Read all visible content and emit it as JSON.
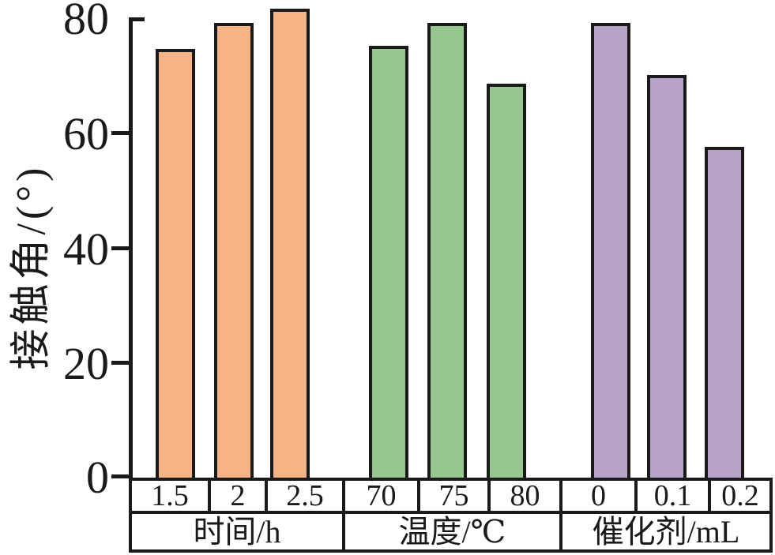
{
  "chart_data": {
    "type": "bar",
    "title": "",
    "ylabel": "接触角/(°)",
    "xlabel": "",
    "ylim": [
      0,
      80
    ],
    "yticks": [
      80,
      60,
      40,
      20,
      0
    ],
    "ytick_labels": [
      "80",
      "60",
      "40",
      "20",
      "0"
    ],
    "grid": false,
    "legend": "none",
    "bar_outline_color": "#1a1a1a",
    "groups": [
      {
        "label": "时间/h",
        "color": "#f6b385",
        "categories": [
          "1.5",
          "2",
          "2.5"
        ],
        "values": [
          74.5,
          79,
          81.5
        ]
      },
      {
        "label": "温度/℃",
        "color": "#96c78e",
        "categories": [
          "70",
          "75",
          "80"
        ],
        "values": [
          75,
          79,
          68.5
        ]
      },
      {
        "label": "催化剂/mL",
        "color": "#b7a3c6",
        "categories": [
          "0",
          "0.1",
          "0.2"
        ],
        "values": [
          79,
          70,
          57.5
        ]
      }
    ]
  }
}
